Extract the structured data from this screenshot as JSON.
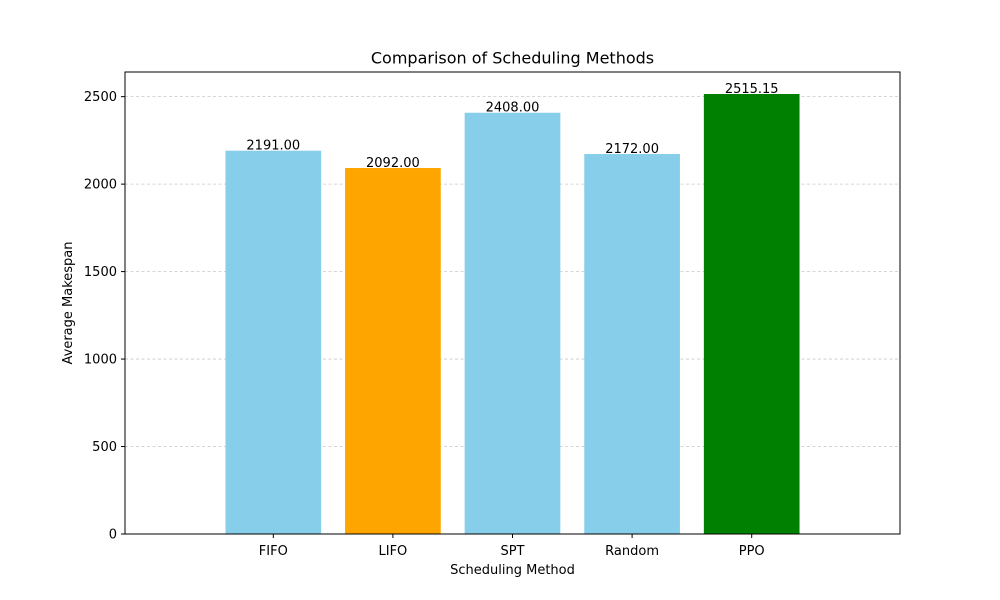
{
  "chart_data": {
    "type": "bar",
    "title": "Comparison of Scheduling Methods",
    "xlabel": "Scheduling Method",
    "ylabel": "Average Makespan",
    "categories": [
      "FIFO",
      "LIFO",
      "SPT",
      "Random",
      "PPO"
    ],
    "values": [
      2191.0,
      2092.0,
      2408.0,
      2172.0,
      2515.15
    ],
    "data_labels": [
      "2191.00",
      "2092.00",
      "2408.00",
      "2172.00",
      "2515.15"
    ],
    "colors": [
      "#87CEEB",
      "#FFA500",
      "#87CEEB",
      "#87CEEB",
      "#008000"
    ],
    "ylim": [
      0,
      2640.9
    ],
    "yticks": [
      0,
      500,
      1000,
      1500,
      2000,
      2500
    ],
    "ytick_labels": [
      "0",
      "500",
      "1000",
      "1500",
      "2000",
      "2500"
    ],
    "grid": {
      "axis": "y",
      "style": "dashed",
      "color": "#c8c8c8"
    },
    "legend": "none"
  }
}
